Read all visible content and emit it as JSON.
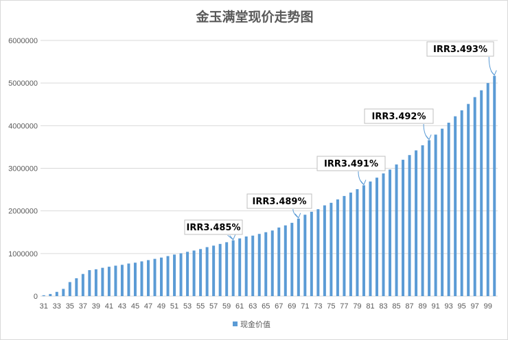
{
  "chart_data": {
    "type": "bar",
    "title": "金玉满堂现价走势图",
    "xlabel": "",
    "ylabel": "",
    "ylim": [
      0,
      6000000
    ],
    "yticks": [
      0,
      1000000,
      2000000,
      3000000,
      4000000,
      5000000,
      6000000
    ],
    "grid": true,
    "legend_position": "bottom",
    "bar_color": "#5B9BD5",
    "categories": [
      31,
      32,
      33,
      34,
      35,
      36,
      37,
      38,
      39,
      40,
      41,
      42,
      43,
      44,
      45,
      46,
      47,
      48,
      49,
      50,
      51,
      52,
      53,
      54,
      55,
      56,
      57,
      58,
      59,
      60,
      61,
      62,
      63,
      64,
      65,
      66,
      67,
      68,
      69,
      70,
      71,
      72,
      73,
      74,
      75,
      76,
      77,
      78,
      79,
      80,
      81,
      82,
      83,
      84,
      85,
      86,
      87,
      88,
      89,
      90,
      91,
      92,
      93,
      94,
      95,
      96,
      97,
      98,
      99,
      100
    ],
    "series": [
      {
        "name": "现金价值",
        "values": [
          20000,
          50000,
          100000,
          170000,
          330000,
          420000,
          520000,
          610000,
          630000,
          665000,
          690000,
          715000,
          735000,
          765000,
          785000,
          815000,
          845000,
          875000,
          905000,
          940000,
          975000,
          1005000,
          1040000,
          1070000,
          1105000,
          1150000,
          1185000,
          1225000,
          1265000,
          1310000,
          1355000,
          1400000,
          1420000,
          1460000,
          1500000,
          1540000,
          1610000,
          1660000,
          1720000,
          1820000,
          1910000,
          1980000,
          2040000,
          2130000,
          2190000,
          2270000,
          2350000,
          2430000,
          2510000,
          2600000,
          2690000,
          2780000,
          2880000,
          2970000,
          3090000,
          3200000,
          3310000,
          3420000,
          3540000,
          3660000,
          3790000,
          3930000,
          4070000,
          4220000,
          4360000,
          4510000,
          4670000,
          4830000,
          5000000,
          5170000
        ]
      }
    ],
    "annotations": [
      {
        "category": 60,
        "text": "IRR3.485%"
      },
      {
        "category": 70,
        "text": "IRR3.489%"
      },
      {
        "category": 80,
        "text": "IRR3.491%"
      },
      {
        "category": 90,
        "text": "IRR3.492%"
      },
      {
        "category": 100,
        "text": "IRR3.493%"
      }
    ]
  }
}
